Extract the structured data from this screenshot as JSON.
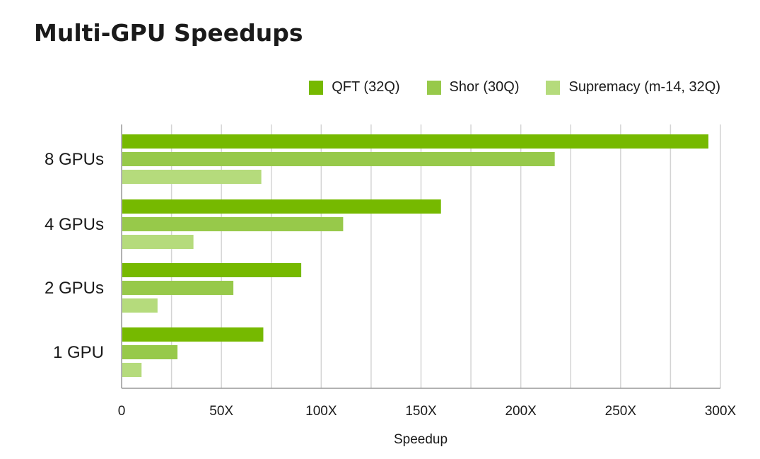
{
  "chart_data": {
    "type": "bar",
    "orientation": "horizontal",
    "title": "Multi-GPU Speedups",
    "xlabel": "Speedup",
    "ylabel": "",
    "categories": [
      "8 GPUs",
      "4 GPUs",
      "2 GPUs",
      "1 GPU"
    ],
    "xlim": [
      0,
      300
    ],
    "x_ticks": [
      "0",
      "50X",
      "100X",
      "150X",
      "200X",
      "250X",
      "300X"
    ],
    "grid": true,
    "legend_position": "top-right",
    "series": [
      {
        "name": "QFT (32Q)",
        "color": "#76b900",
        "values": [
          294,
          160,
          90,
          71
        ]
      },
      {
        "name": "Shor (30Q)",
        "color": "#97c94a",
        "values": [
          217,
          111,
          56,
          28
        ]
      },
      {
        "name": "Supremacy (m-14, 32Q)",
        "color": "#b5db7c",
        "values": [
          70,
          36,
          18,
          10
        ]
      }
    ]
  }
}
